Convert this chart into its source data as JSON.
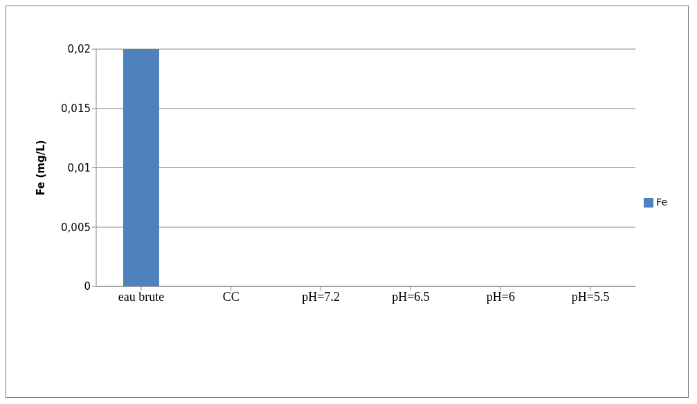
{
  "chart_data": {
    "type": "bar",
    "ylabel": "Fe (mg/L)",
    "categories": [
      "eau brute",
      "CC",
      "pH=7.2",
      "pH=6.5",
      "pH=6",
      "pH=5.5"
    ],
    "series": [
      {
        "name": "Fe",
        "color": "#4f81bd",
        "values": [
          0.02,
          0,
          0,
          0,
          0,
          0
        ]
      }
    ],
    "ylim": [
      0,
      0.02
    ],
    "yticks": [
      0,
      {
        "value": 0.005,
        "label": "0,005"
      },
      {
        "value": 0.01,
        "label": "0,01"
      },
      {
        "value": 0.015,
        "label": "0,015"
      },
      {
        "value": 0.02,
        "label": "0,02"
      }
    ],
    "grid": "y",
    "legend": "right"
  }
}
